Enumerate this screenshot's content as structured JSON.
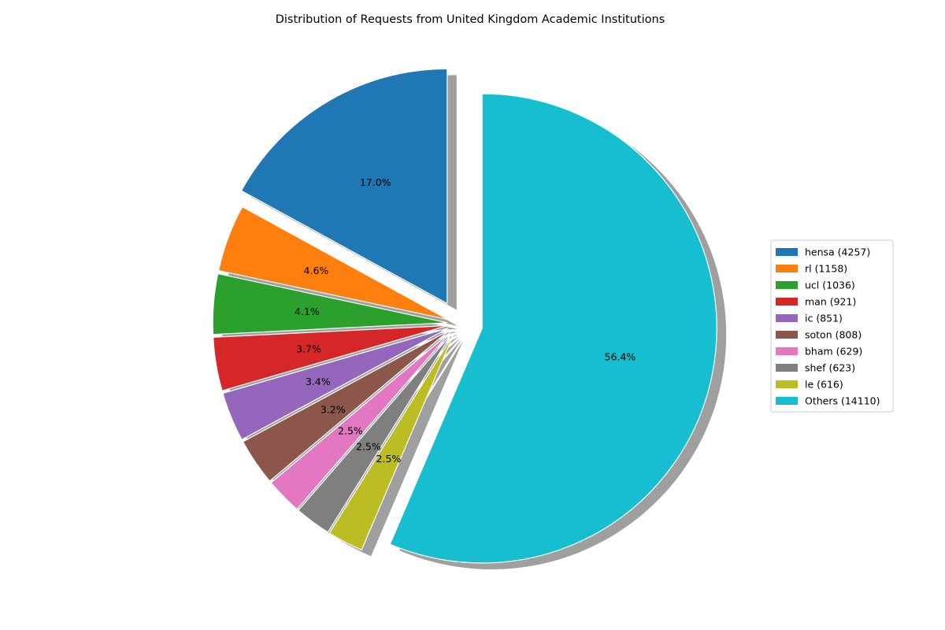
{
  "chart_data": {
    "type": "pie",
    "title": "Distribution of Requests from United Kingdom Academic Institutions",
    "categories": [
      "hensa",
      "rl",
      "ucl",
      "man",
      "ic",
      "soton",
      "bham",
      "shef",
      "le",
      "Others"
    ],
    "values": [
      4257,
      1158,
      1036,
      921,
      851,
      808,
      629,
      623,
      616,
      14110
    ],
    "legend_labels": [
      "hensa (4257)",
      "rl (1158)",
      "ucl (1036)",
      "man (921)",
      "ic (851)",
      "soton (808)",
      "bham (629)",
      "shef (623)",
      "le (616)",
      "Others (14110)"
    ],
    "percent_labels": [
      "17.0%",
      "4.6%",
      "4.1%",
      "3.7%",
      "3.4%",
      "3.2%",
      "2.5%",
      "2.5%",
      "2.5%",
      "56.4%"
    ],
    "colors": [
      "#1f77b4",
      "#ff7f0e",
      "#2ca02c",
      "#d62728",
      "#9467bd",
      "#8c564b",
      "#e377c2",
      "#7f7f7f",
      "#bcbd22",
      "#17becf"
    ],
    "explode": [
      0.1,
      0.05,
      0.05,
      0.05,
      0.05,
      0.05,
      0.05,
      0.05,
      0.05,
      0.1
    ],
    "start_angle_deg": 90,
    "direction": "counterclockwise",
    "shadow": true,
    "legend_position": "right"
  }
}
